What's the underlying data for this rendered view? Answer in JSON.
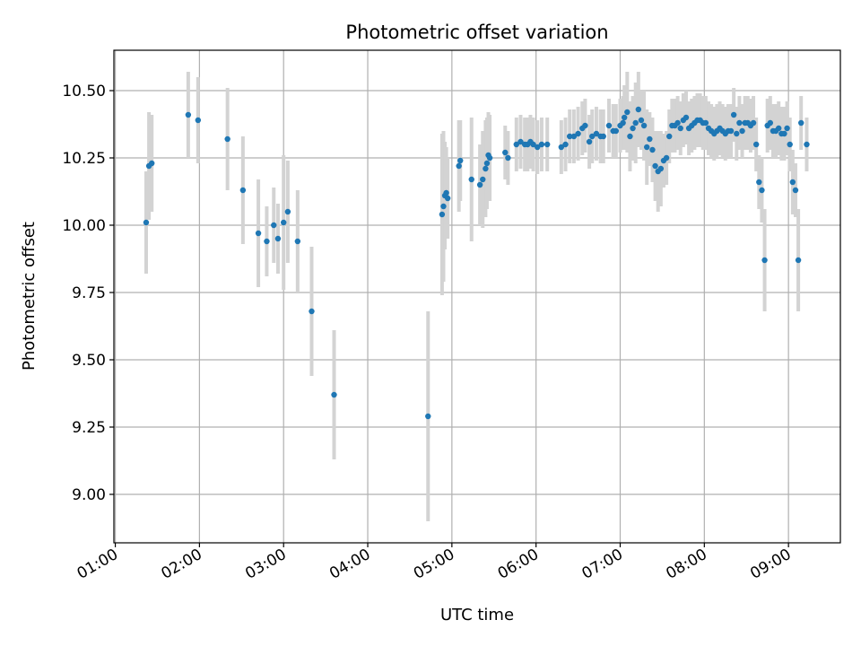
{
  "chart_data": {
    "type": "scatter",
    "title": "Photometric offset variation",
    "xlabel": "UTC time",
    "ylabel": "Photometric offset",
    "x_tick_labels": [
      "01:00",
      "02:00",
      "03:00",
      "04:00",
      "05:00",
      "06:00",
      "07:00",
      "08:00",
      "09:00"
    ],
    "y_tick_labels": [
      "9.00",
      "9.25",
      "9.50",
      "9.75",
      "10.00",
      "10.25",
      "10.50"
    ],
    "y_ticks": [
      9.0,
      9.25,
      9.5,
      9.75,
      10.0,
      10.25,
      10.5
    ],
    "xlim": [
      "00:59",
      "09:37"
    ],
    "ylim": [
      8.82,
      10.65
    ],
    "grid": true,
    "colors": {
      "point": "#1f77b4",
      "errorbar": "#d3d3d3",
      "grid": "#b0b0b0"
    },
    "series": [
      {
        "x": [
          "01:22",
          "01:24",
          "01:26",
          "01:52",
          "01:59",
          "02:20",
          "02:31",
          "02:42",
          "02:48",
          "02:53",
          "02:56",
          "03:00",
          "03:03",
          "03:10",
          "03:20",
          "03:36",
          "04:43",
          "04:53",
          "04:54",
          "04:55",
          "04:56",
          "04:57",
          "05:05",
          "05:06",
          "05:14",
          "05:20",
          "05:22",
          "05:24",
          "05:25",
          "05:26",
          "05:27",
          "05:38",
          "05:40",
          "05:46",
          "05:49",
          "05:52",
          "05:54",
          "05:56",
          "05:58",
          "06:01",
          "06:04",
          "06:08",
          "06:18",
          "06:21",
          "06:24",
          "06:27",
          "06:30",
          "06:33",
          "06:35",
          "06:38",
          "06:40",
          "06:43",
          "06:46",
          "06:48",
          "06:52",
          "06:55",
          "06:57",
          "07:00",
          "07:02",
          "07:03",
          "07:05",
          "07:07",
          "07:09",
          "07:11",
          "07:13",
          "07:15",
          "07:17",
          "07:19",
          "07:21",
          "07:23",
          "07:25",
          "07:27",
          "07:29",
          "07:31",
          "07:33",
          "07:35",
          "07:37",
          "07:39",
          "07:41",
          "07:43",
          "07:45",
          "07:47",
          "07:49",
          "07:51",
          "07:53",
          "07:55",
          "07:57",
          "07:59",
          "08:01",
          "08:03",
          "08:05",
          "08:07",
          "08:09",
          "08:11",
          "08:13",
          "08:15",
          "08:17",
          "08:19",
          "08:21",
          "08:23",
          "08:25",
          "08:27",
          "08:29",
          "08:31",
          "08:33",
          "08:35",
          "08:37",
          "08:39",
          "08:41",
          "08:43",
          "08:45",
          "08:47",
          "08:49",
          "08:51",
          "08:53",
          "08:55",
          "08:57",
          "08:59",
          "09:01",
          "09:03",
          "09:05",
          "09:07",
          "09:09",
          "09:13"
        ],
        "y": [
          10.01,
          10.22,
          10.23,
          10.41,
          10.39,
          10.32,
          10.13,
          9.97,
          9.94,
          10.0,
          9.95,
          10.01,
          10.05,
          9.94,
          9.68,
          9.37,
          9.29,
          10.04,
          10.07,
          10.11,
          10.12,
          10.1,
          10.22,
          10.24,
          10.17,
          10.15,
          10.17,
          10.21,
          10.23,
          10.26,
          10.25,
          10.27,
          10.25,
          10.3,
          10.31,
          10.3,
          10.3,
          10.31,
          10.3,
          10.29,
          10.3,
          10.3,
          10.29,
          10.3,
          10.33,
          10.33,
          10.34,
          10.36,
          10.37,
          10.31,
          10.33,
          10.34,
          10.33,
          10.33,
          10.37,
          10.35,
          10.35,
          10.37,
          10.38,
          10.4,
          10.42,
          10.33,
          10.36,
          10.38,
          10.43,
          10.39,
          10.37,
          10.29,
          10.32,
          10.28,
          10.22,
          10.2,
          10.21,
          10.24,
          10.25,
          10.33,
          10.37,
          10.37,
          10.38,
          10.36,
          10.39,
          10.4,
          10.36,
          10.37,
          10.38,
          10.39,
          10.39,
          10.38,
          10.38,
          10.36,
          10.35,
          10.34,
          10.35,
          10.36,
          10.35,
          10.34,
          10.35,
          10.35,
          10.41,
          10.34,
          10.38,
          10.35,
          10.38,
          10.38,
          10.37,
          10.38,
          10.3,
          10.16,
          10.13,
          9.87,
          10.37,
          10.38,
          10.35,
          10.35,
          10.36,
          10.34,
          10.34,
          10.36,
          10.3,
          10.16,
          10.13,
          9.87,
          10.38,
          10.3
        ],
        "yerr": [
          0.19,
          0.2,
          0.18,
          0.16,
          0.16,
          0.19,
          0.2,
          0.2,
          0.13,
          0.14,
          0.13,
          0.25,
          0.19,
          0.19,
          0.24,
          0.24,
          0.39,
          0.3,
          0.28,
          0.2,
          0.17,
          0.15,
          0.17,
          0.15,
          0.23,
          0.15,
          0.18,
          0.18,
          0.17,
          0.16,
          0.16,
          0.1,
          0.1,
          0.1,
          0.1,
          0.1,
          0.1,
          0.1,
          0.1,
          0.1,
          0.1,
          0.1,
          0.1,
          0.1,
          0.1,
          0.1,
          0.1,
          0.1,
          0.1,
          0.1,
          0.1,
          0.1,
          0.1,
          0.1,
          0.1,
          0.1,
          0.1,
          0.1,
          0.1,
          0.12,
          0.15,
          0.13,
          0.12,
          0.15,
          0.14,
          0.11,
          0.13,
          0.14,
          0.1,
          0.12,
          0.13,
          0.15,
          0.14,
          0.1,
          0.1,
          0.1,
          0.1,
          0.1,
          0.1,
          0.1,
          0.1,
          0.1,
          0.1,
          0.1,
          0.1,
          0.1,
          0.1,
          0.1,
          0.1,
          0.1,
          0.1,
          0.1,
          0.1,
          0.1,
          0.1,
          0.1,
          0.1,
          0.1,
          0.1,
          0.1,
          0.1,
          0.1,
          0.1,
          0.1,
          0.1,
          0.1,
          0.1,
          0.1,
          0.12,
          0.19,
          0.1,
          0.1,
          0.1,
          0.1,
          0.1,
          0.1,
          0.1,
          0.1,
          0.1,
          0.12,
          0.1,
          0.19,
          0.1,
          0.1
        ]
      }
    ]
  }
}
